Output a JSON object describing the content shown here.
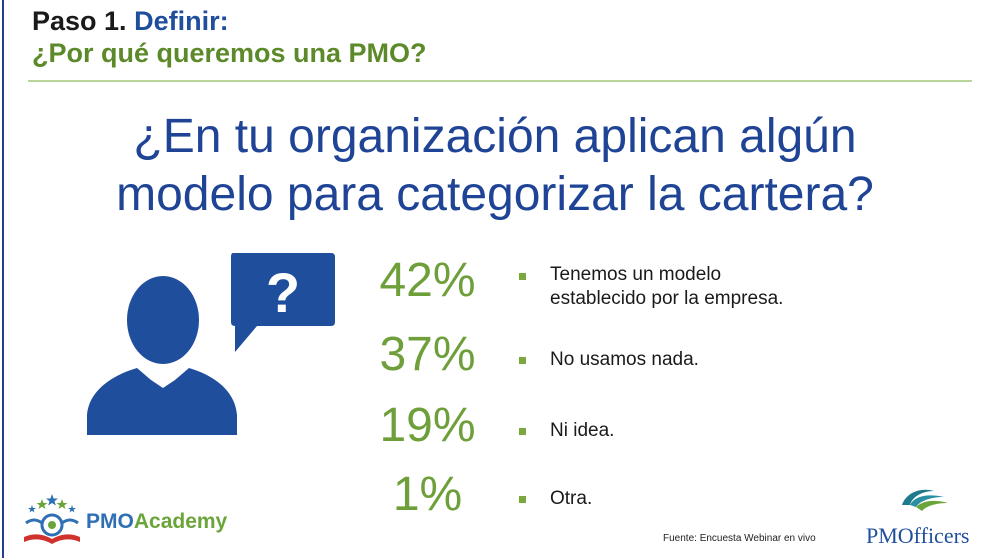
{
  "header": {
    "step_prefix": "Paso 1.",
    "step_name": "Definir:",
    "subtitle": "¿Por qué queremos una PMO?"
  },
  "question": {
    "line1": "¿En tu organización aplican algún",
    "line2": "modelo para categorizar la cartera?"
  },
  "results": [
    {
      "percent": "42%",
      "label_line1": "Tenemos un modelo",
      "label_line2": "establecido por la empresa."
    },
    {
      "percent": "37%",
      "label_line1": "No usamos nada.",
      "label_line2": ""
    },
    {
      "percent": "19%",
      "label_line1": "Ni idea.",
      "label_line2": ""
    },
    {
      "percent": "1%",
      "label_line1": "Otra.",
      "label_line2": ""
    }
  ],
  "icons": {
    "person": "person-silhouette-icon",
    "question_bubble": "question-speech-bubble-icon"
  },
  "footer": {
    "source": "Fuente: Encuesta Webinar en vivo",
    "logo_left_part1": "PMO",
    "logo_left_part2": "Academy",
    "logo_right": "PMOfficers"
  },
  "colors": {
    "title_blue": "#1f4e9d",
    "accent_green": "#6e9f3a",
    "question_blue": "#1f4496"
  }
}
